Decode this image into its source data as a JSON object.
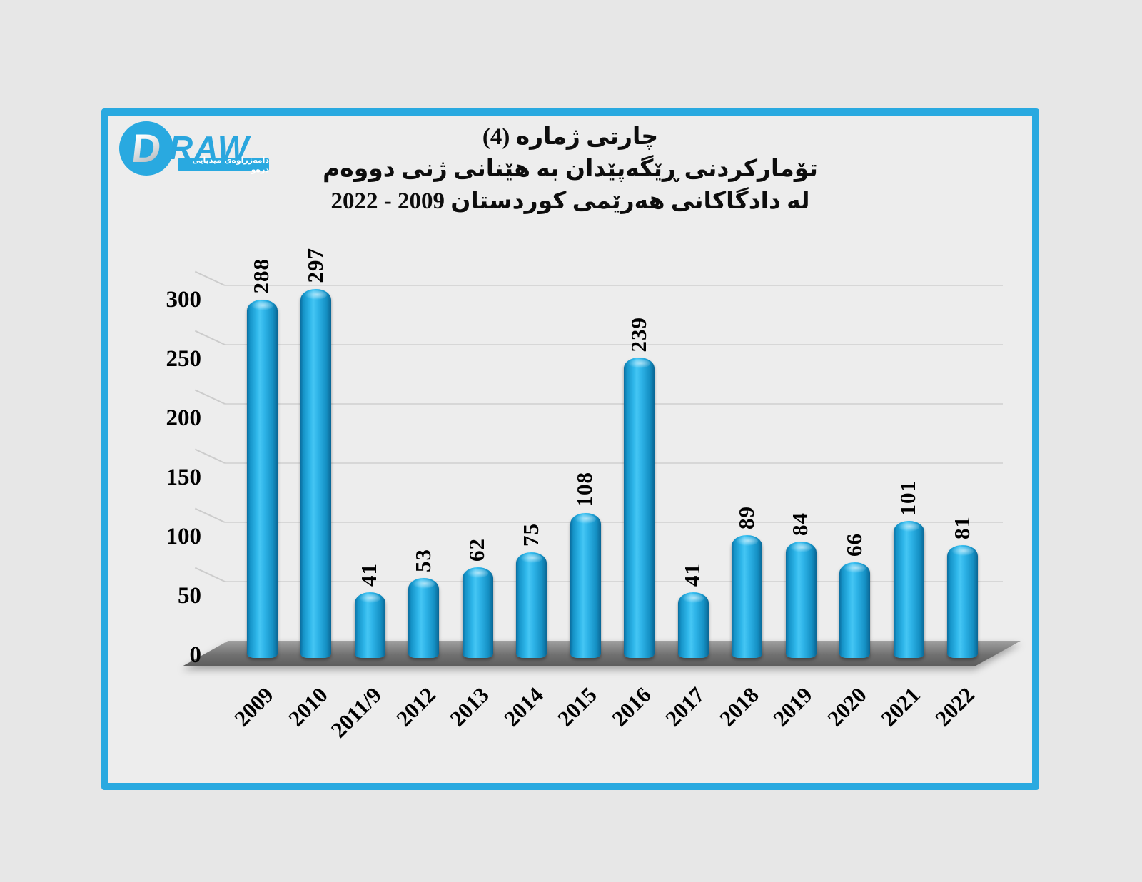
{
  "title": {
    "line1": "چارتی ژمارە (4)",
    "line2": "تۆمارکردنی ڕێگەپێدان بە هێنانی ژنی دووەم",
    "line3": "لە دادگاکانی هەرێمی کوردستان 2009 - 2022"
  },
  "branding": {
    "wordmark_d": "D",
    "wordmark_raw": "RAW",
    "tagline": "دامەزراوەی میدیایی درەو"
  },
  "colors": {
    "accent": "#29a9e0",
    "bar_main": "#1b9fd8",
    "bar_highlight": "#45c6f4",
    "bar_shadow": "#0a6694",
    "background": "#e7e7e7",
    "plot_background": "#ededed",
    "gridline": "#d7d7d7",
    "floor": "#707070",
    "text": "#000000"
  },
  "chart_data": {
    "type": "bar",
    "style": "3d-cylinder",
    "categories": [
      "2009",
      "2010",
      "2011/9",
      "2012",
      "2013",
      "2014",
      "2015",
      "2016",
      "2017",
      "2018",
      "2019",
      "2020",
      "2021",
      "2022"
    ],
    "values": [
      288,
      297,
      41,
      53,
      62,
      75,
      108,
      239,
      41,
      89,
      84,
      66,
      101,
      81
    ],
    "title": "چارتی ژمارە (4) تۆمارکردنی ڕێگەپێدان بە هێنانی ژنی دووەم لە دادگاکانی هەرێمی کوردستان 2009 - 2022",
    "xlabel": "",
    "ylabel": "",
    "ylim": [
      0,
      300
    ],
    "yticks": [
      0,
      50,
      100,
      150,
      200,
      250,
      300
    ],
    "grid": true,
    "legend": false,
    "bar_labels_rotated": true,
    "x_labels_rotated": true
  }
}
